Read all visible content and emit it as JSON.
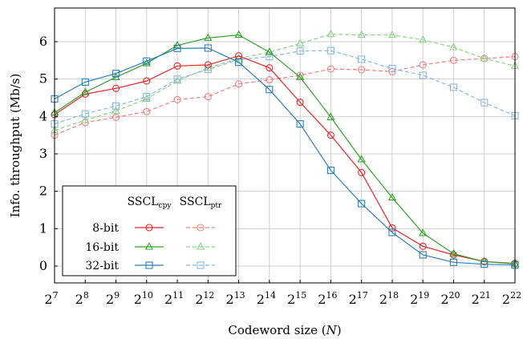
{
  "chart_data": {
    "type": "line",
    "xlabel": "Codeword size (N)",
    "ylabel": "Info. throughput (Mb/s)",
    "x_base": "2",
    "x_exponents": [
      "7",
      "8",
      "9",
      "10",
      "11",
      "12",
      "13",
      "14",
      "15",
      "16",
      "17",
      "18",
      "19",
      "20",
      "21",
      "22"
    ],
    "x": [
      128,
      256,
      512,
      1024,
      2048,
      4096,
      8192,
      16384,
      32768,
      65536,
      131072,
      262144,
      524288,
      1048576,
      2097152,
      4194304
    ],
    "x_scale": "log2",
    "yticks": [
      "0",
      "1",
      "2",
      "3",
      "4",
      "5",
      "6"
    ],
    "ylim": [
      -0.45,
      6.9
    ],
    "grid": true,
    "legend": {
      "placement": "bottom-left",
      "columns": [
        {
          "base": "SSCL",
          "sub": "cpy"
        },
        {
          "base": "SSCL",
          "sub": "ptr"
        }
      ],
      "rows": [
        "8-bit",
        "16-bit",
        "32-bit"
      ]
    },
    "series": [
      {
        "name": "8-bit",
        "variant": "cpy",
        "color": "#e8262a",
        "marker": "circle",
        "dashed": false,
        "values": [
          4.05,
          4.6,
          4.75,
          4.95,
          5.35,
          5.38,
          5.62,
          5.3,
          4.38,
          3.5,
          2.5,
          1.02,
          0.53,
          0.3,
          0.12,
          0.07
        ]
      },
      {
        "name": "16-bit",
        "variant": "cpy",
        "color": "#33a02c",
        "marker": "triangle",
        "dashed": false,
        "values": [
          4.1,
          4.65,
          5.05,
          5.42,
          5.9,
          6.1,
          6.18,
          5.72,
          5.05,
          3.98,
          2.85,
          1.83,
          0.88,
          0.33,
          0.12,
          0.06
        ]
      },
      {
        "name": "32-bit",
        "variant": "cpy",
        "color": "#2c7fb8",
        "marker": "square",
        "dashed": false,
        "values": [
          4.47,
          4.92,
          5.15,
          5.48,
          5.82,
          5.83,
          5.45,
          4.72,
          3.8,
          2.56,
          1.67,
          0.9,
          0.3,
          0.1,
          0.05,
          0.03
        ]
      },
      {
        "name": "8-bit",
        "variant": "ptr",
        "color": "#f07f82",
        "marker": "circle",
        "dashed": true,
        "values": [
          3.5,
          3.84,
          3.98,
          4.13,
          4.45,
          4.53,
          4.87,
          4.98,
          5.1,
          5.27,
          5.25,
          5.2,
          5.38,
          5.5,
          5.55,
          5.6
        ]
      },
      {
        "name": "16-bit",
        "variant": "ptr",
        "color": "#8fd08a",
        "marker": "triangle",
        "dashed": true,
        "values": [
          3.63,
          3.9,
          4.15,
          4.47,
          4.95,
          5.3,
          5.55,
          5.72,
          5.95,
          6.2,
          6.18,
          6.18,
          6.05,
          5.85,
          5.55,
          5.35
        ]
      },
      {
        "name": "32-bit",
        "variant": "ptr",
        "color": "#86b9de",
        "marker": "square",
        "dashed": true,
        "values": [
          3.8,
          4.07,
          4.28,
          4.53,
          5.0,
          5.26,
          5.52,
          5.6,
          5.75,
          5.76,
          5.53,
          5.28,
          5.1,
          4.78,
          4.37,
          4.02
        ]
      }
    ]
  }
}
